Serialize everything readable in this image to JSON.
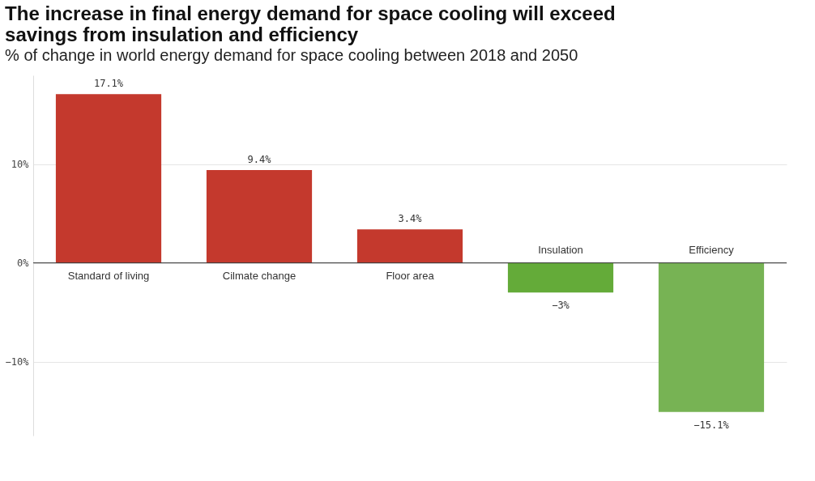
{
  "chart_data": {
    "type": "bar",
    "title": "The increase in final energy demand for space cooling will exceed savings from insulation and efficiency",
    "subtitle": "% of change in world energy demand for space cooling between 2018 and 2050",
    "categories": [
      "Standard of living",
      "Cilmate change",
      "Floor area",
      "Insulation",
      "Efficiency"
    ],
    "values": [
      17.1,
      9.4,
      3.4,
      -3,
      -15.1
    ],
    "colors": [
      "#c4392d",
      "#c4392d",
      "#c4392d",
      "#64ab39",
      "#77b354"
    ],
    "value_labels": [
      "17.1%",
      "9.4%",
      "3.4%",
      "−3%",
      "−15.1%"
    ],
    "ylim": [
      -17.5,
      19
    ],
    "yticks": [
      {
        "value": -10,
        "label": "−10%"
      },
      {
        "value": 0,
        "label": "0%"
      },
      {
        "value": 10,
        "label": "10%"
      }
    ],
    "grid": "y",
    "legend": false
  }
}
